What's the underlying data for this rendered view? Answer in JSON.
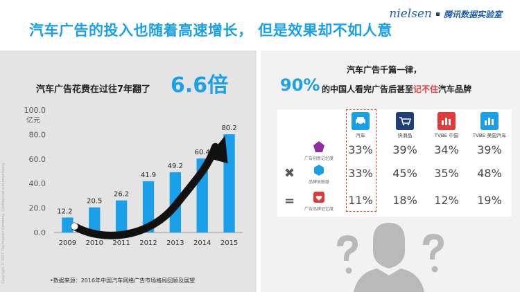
{
  "title": "汽车广告的投入也随着高速增长， 但是效果却不如人意",
  "brand": {
    "logo": "nielsen",
    "lab": "腾讯数据实验室"
  },
  "left": {
    "heading": "汽车广告花费在过往7年翻了",
    "multiplier": "6.6倍",
    "source": "•数据来源：2016年中国汽车网络广告市场格局回顾及展望"
  },
  "vertical_legal": "Copyright © 2017 The Nielsen Company. Confidential and proprietary.",
  "chart_data": {
    "type": "bar",
    "categories": [
      "2009",
      "2010",
      "2011",
      "2012",
      "2013",
      "2014",
      "2015"
    ],
    "values": [
      12.2,
      20.5,
      26.2,
      41.9,
      49.2,
      60.4,
      80.2
    ],
    "value_labels": [
      "12.2",
      "20.5",
      "26.2",
      "41.9",
      "49.2",
      "60.4",
      "80.2"
    ],
    "title": "",
    "xlabel": "",
    "ylabel": "亿元",
    "ylim": [
      0,
      100
    ],
    "yticks": [
      0,
      20,
      40,
      60,
      80,
      100
    ],
    "ytick_labels": [
      "0.0",
      "20.0",
      "40.0",
      "60.0",
      "80.0",
      "100.0"
    ],
    "bar_color": "#1aa0e8",
    "arrow_color": "#111111",
    "grid": false
  },
  "right": {
    "heading1": "汽车广告千篇一律，",
    "pct": "90%",
    "heading2_pre": "的中国人看完广告后甚至",
    "heading2_hl": "记不住",
    "heading2_post": "汽车品牌",
    "highlight_color": "#e03b3b"
  },
  "table": {
    "columns": [
      {
        "label": "汽车",
        "icon": "car-icon",
        "color": "#1aa0e8"
      },
      {
        "label": "快消品",
        "icon": "shopping-cart-icon",
        "color": "#1f3f78"
      },
      {
        "label": "TVBE 中国",
        "icon": "bar-chart-icon",
        "color": "#e03b3b"
      },
      {
        "label": "TVBE 美国汽车",
        "icon": "bar-chart-icon",
        "color": "#1aa0e8"
      }
    ],
    "rows": [
      {
        "label": "广告创意记忆度",
        "icon": "pentagon-icon",
        "color": "#8e2fa0",
        "values": [
          "33%",
          "39%",
          "34%",
          "39%"
        ]
      },
      {
        "label": "品牌关联度",
        "icon": "hexagon-icon",
        "color": "#1aa0e8",
        "values": [
          "33%",
          "45%",
          "35%",
          "48%"
        ]
      },
      {
        "label": "广告品牌记忆度",
        "icon": "heart-badge-icon",
        "color": "#e03b3b",
        "values": [
          "11%",
          "18%",
          "12%",
          "19%"
        ]
      }
    ],
    "operators": [
      "✖",
      "="
    ]
  }
}
